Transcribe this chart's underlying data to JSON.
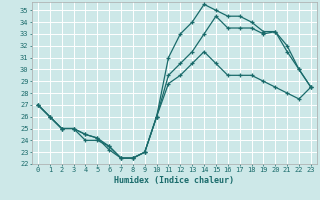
{
  "xlabel": "Humidex (Indice chaleur)",
  "bg_color": "#cde8e8",
  "grid_color": "#ffffff",
  "line_color": "#1a6b6b",
  "xlim": [
    -0.5,
    23.5
  ],
  "ylim": [
    22,
    35.7
  ],
  "xticks": [
    0,
    1,
    2,
    3,
    4,
    5,
    6,
    7,
    8,
    9,
    10,
    11,
    12,
    13,
    14,
    15,
    16,
    17,
    18,
    19,
    20,
    21,
    22,
    23
  ],
  "yticks": [
    22,
    23,
    24,
    25,
    26,
    27,
    28,
    29,
    30,
    31,
    32,
    33,
    34,
    35
  ],
  "line1_x": [
    0,
    1,
    2,
    3,
    4,
    5,
    6,
    7,
    8,
    9,
    10,
    11,
    12,
    13,
    14,
    15,
    16,
    17,
    18,
    19,
    20,
    21,
    22,
    23
  ],
  "line1_y": [
    27.0,
    26.0,
    25.0,
    25.0,
    24.5,
    24.2,
    23.2,
    22.5,
    22.5,
    23.0,
    26.0,
    31.0,
    33.0,
    34.0,
    35.5,
    35.0,
    34.5,
    34.5,
    34.0,
    33.2,
    33.2,
    32.0,
    30.0,
    28.5
  ],
  "line2_x": [
    0,
    1,
    2,
    3,
    4,
    5,
    6,
    7,
    8,
    9,
    10,
    11,
    12,
    13,
    14,
    15,
    16,
    17,
    18,
    19,
    20,
    21,
    22,
    23
  ],
  "line2_y": [
    27.0,
    26.0,
    25.0,
    25.0,
    24.5,
    24.2,
    23.5,
    22.5,
    22.5,
    23.0,
    26.0,
    29.5,
    30.5,
    31.5,
    33.0,
    34.5,
    33.5,
    33.5,
    33.5,
    33.0,
    33.2,
    31.5,
    30.0,
    28.5
  ],
  "line3_x": [
    0,
    1,
    2,
    3,
    4,
    5,
    6,
    7,
    8,
    9,
    10,
    11,
    12,
    13,
    14,
    15,
    16,
    17,
    18,
    19,
    20,
    21,
    22,
    23
  ],
  "line3_y": [
    27.0,
    26.0,
    25.0,
    25.0,
    24.0,
    24.0,
    23.5,
    22.5,
    22.5,
    23.0,
    26.0,
    28.8,
    29.5,
    30.5,
    31.5,
    30.5,
    29.5,
    29.5,
    29.5,
    29.0,
    28.5,
    28.0,
    27.5,
    28.5
  ]
}
